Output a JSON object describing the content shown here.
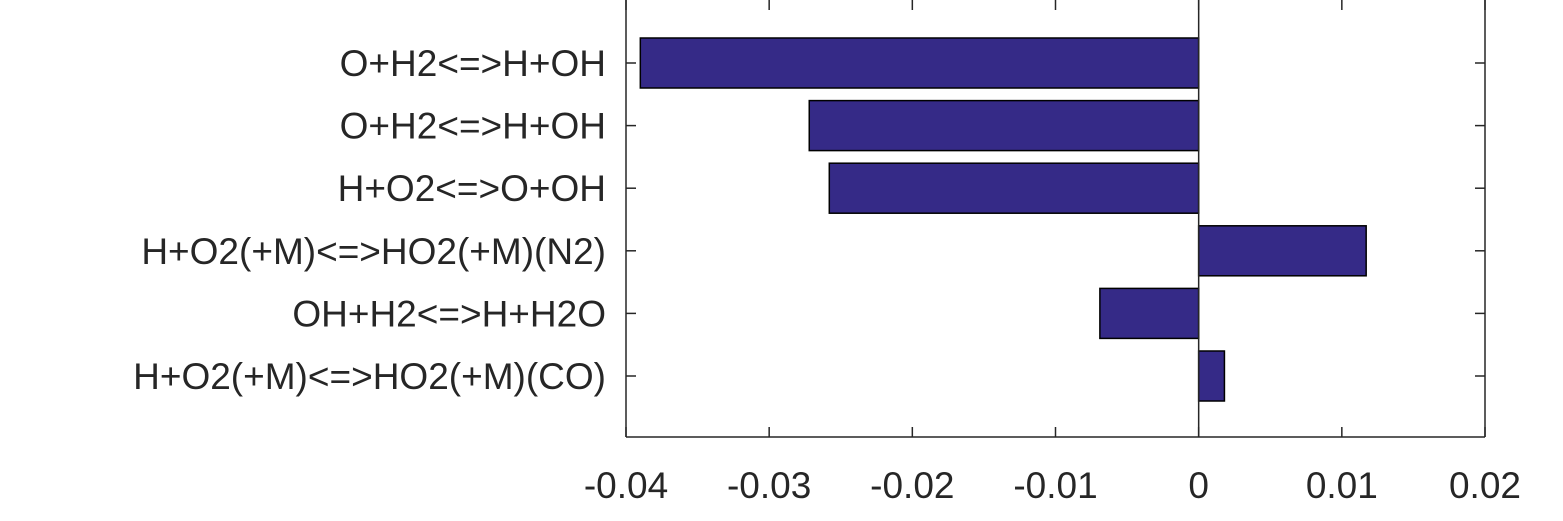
{
  "colors": {
    "bar_fill": "#352A87",
    "bar_stroke": "#000000",
    "axis": "#262626",
    "background": "#ffffff"
  },
  "chart_data": {
    "type": "bar",
    "orientation": "horizontal",
    "categories": [
      "O+H2<=>H+OH",
      "O+H2<=>H+OH",
      "H+O2<=>O+OH",
      "H+O2(+M)<=>HO2(+M)(N2)",
      "OH+H2<=>H+H2O",
      "H+O2(+M)<=>HO2(+M)(CO)"
    ],
    "values": [
      -0.039,
      -0.0272,
      -0.0258,
      0.0117,
      -0.0069,
      0.0018
    ],
    "xlim": [
      -0.04,
      0.02
    ],
    "xticks": [
      -0.04,
      -0.03,
      -0.02,
      -0.01,
      0,
      0.01,
      0.02
    ],
    "xtick_labels": [
      "-0.04",
      "-0.03",
      "-0.02",
      "-0.01",
      "0",
      "0.01",
      "0.02"
    ],
    "title": "",
    "xlabel": "",
    "ylabel": "",
    "grid": false,
    "legend": "none"
  }
}
